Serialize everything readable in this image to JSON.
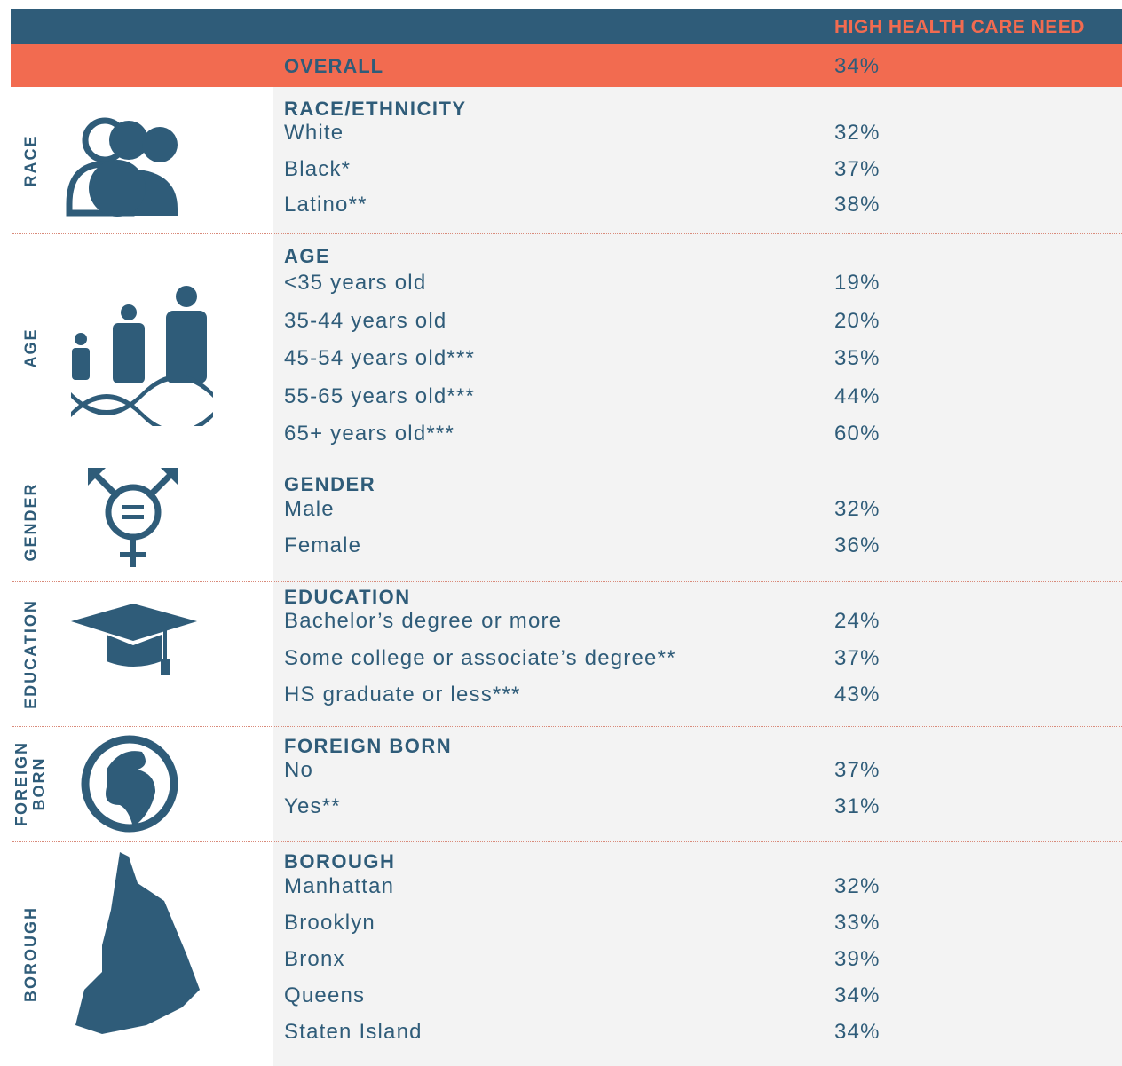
{
  "header": {
    "column_title": "HIGH HEALTH CARE NEED"
  },
  "overall": {
    "label": "OVERALL",
    "value": "34%"
  },
  "sections": [
    {
      "side_label": "RACE",
      "heading": "RACE/ETHNICITY",
      "rows": [
        [
          "White",
          "32%"
        ],
        [
          "Black*",
          "37%"
        ],
        [
          "Latino**",
          "38%"
        ]
      ]
    },
    {
      "side_label": "AGE",
      "heading": "AGE",
      "rows": [
        [
          "<35 years old",
          "19%"
        ],
        [
          "35-44 years old",
          "20%"
        ],
        [
          "45-54 years old***",
          "35%"
        ],
        [
          "55-65 years old***",
          "44%"
        ],
        [
          "65+ years old***",
          "60%"
        ]
      ]
    },
    {
      "side_label": "GENDER",
      "heading": "GENDER",
      "rows": [
        [
          "Male",
          "32%"
        ],
        [
          "Female",
          "36%"
        ]
      ]
    },
    {
      "side_label": "EDUCATION",
      "heading": "EDUCATION",
      "rows": [
        [
          "Bachelor’s degree or more",
          "24%"
        ],
        [
          "Some college or associate’s degree**",
          "37%"
        ],
        [
          "HS graduate or less***",
          "43%"
        ]
      ]
    },
    {
      "side_label": "FOREIGN BORN",
      "heading": "FOREIGN BORN",
      "rows": [
        [
          "No",
          "37%"
        ],
        [
          "Yes**",
          "31%"
        ]
      ]
    },
    {
      "side_label": "BOROUGH",
      "heading": "BOROUGH",
      "rows": [
        [
          "Manhattan",
          "32%"
        ],
        [
          "Brooklyn",
          "33%"
        ],
        [
          "Bronx",
          "39%"
        ],
        [
          "Queens",
          "34%"
        ],
        [
          "Staten Island",
          "34%"
        ]
      ]
    }
  ]
}
